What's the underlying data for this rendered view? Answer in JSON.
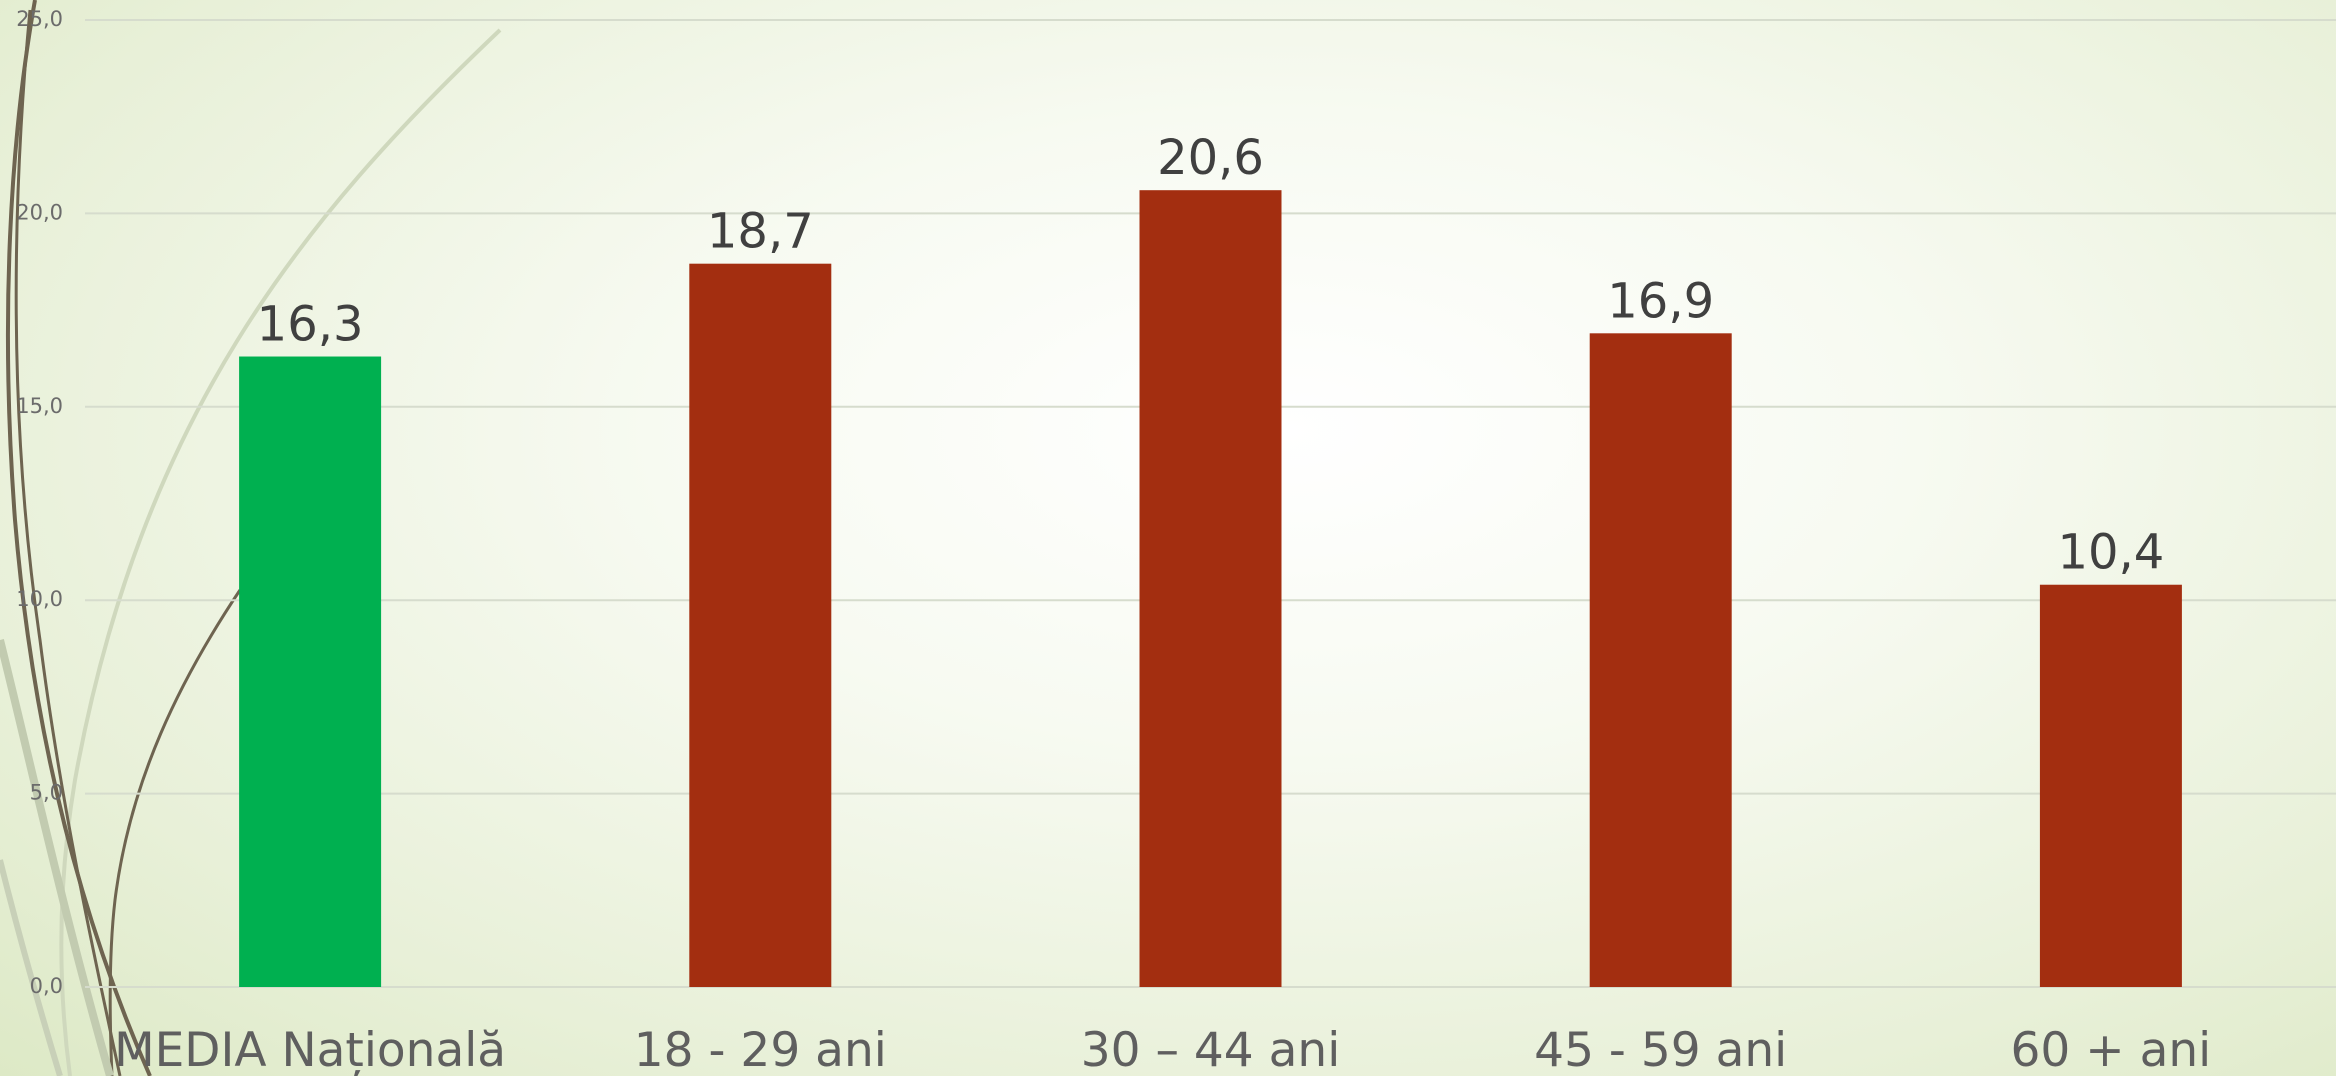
{
  "chart_data": {
    "type": "bar",
    "categories": [
      "MEDIA Națională",
      "18 - 29 ani",
      "30 – 44 ani",
      "45 - 59 ani",
      "60 + ani"
    ],
    "values": [
      16.3,
      18.7,
      20.6,
      16.9,
      10.4
    ],
    "value_labels": [
      "16,3",
      "18,7",
      "20,6",
      "16,9",
      "10,4"
    ],
    "ylim": [
      0,
      25
    ],
    "yticks": [
      0,
      5,
      10,
      15,
      20,
      25
    ],
    "ytick_labels": [
      "0,0",
      "5,0",
      "10,0",
      "15,0",
      "20,0",
      "25,0"
    ],
    "title": "",
    "xlabel": "",
    "ylabel": "",
    "grid": true,
    "legend": "none",
    "bar_colors": [
      "#00b050",
      "#a32e10",
      "#a32e10",
      "#a32e10",
      "#a32e10"
    ],
    "gridline_color": "#d6dccd"
  }
}
